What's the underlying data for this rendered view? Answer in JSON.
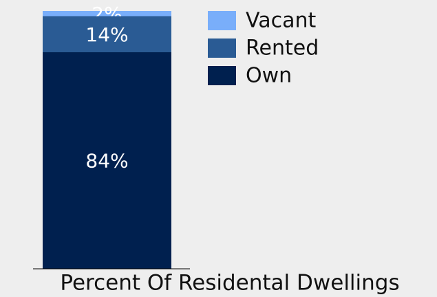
{
  "chart_data": {
    "type": "stacked_bar",
    "x_label": "Percent Of Residental Dwellings",
    "categories": [
      null
    ],
    "series": [
      {
        "name": "Vacant",
        "color": "#79aefa",
        "values": [
          2
        ],
        "value_labels": [
          "2%"
        ]
      },
      {
        "name": "Rented",
        "color": "#2a5b94",
        "values": [
          14
        ],
        "value_labels": [
          "14%"
        ]
      },
      {
        "name": "Own",
        "color": "#00204f",
        "values": [
          84
        ],
        "value_labels": [
          "84%"
        ]
      }
    ],
    "ylim": [
      0,
      100
    ],
    "legend": "top-right"
  }
}
